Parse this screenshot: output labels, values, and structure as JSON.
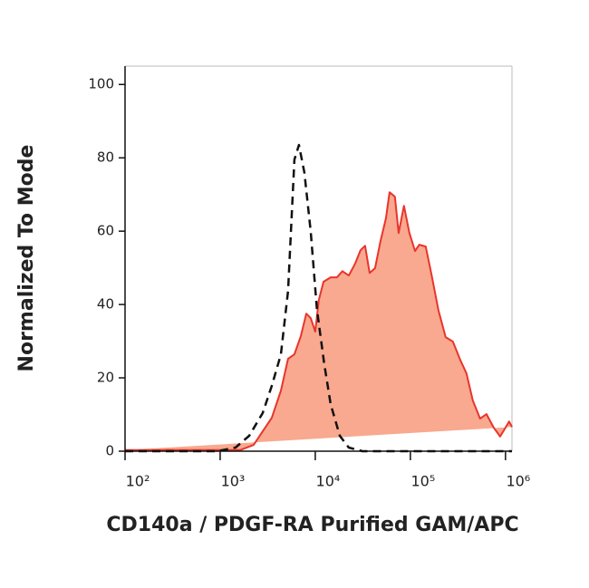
{
  "chart_data": {
    "type": "histogram-overlay",
    "x_label": "CD140a / PDGF-RA Purified GAM/APC",
    "y_label": "Normalized To Mode",
    "x_log": true,
    "xlim": [
      100,
      1170000
    ],
    "ylim": [
      0,
      105
    ],
    "xticks": [
      {
        "value": 100,
        "label": "10²"
      },
      {
        "value": 1000,
        "label": "10³"
      },
      {
        "value": 10000,
        "label": "10⁴"
      },
      {
        "value": 100000,
        "label": "10⁵"
      },
      {
        "value": 1000000,
        "label": "10⁶"
      }
    ],
    "yticks": [
      0,
      20,
      40,
      60,
      80,
      100
    ],
    "series": [
      {
        "color": "#e8352b",
        "fill": "#f9a98f",
        "dashed": false,
        "x": [
          100,
          1620,
          2250,
          2800,
          3490,
          4350,
          5180,
          6040,
          7050,
          8040,
          8960,
          10000,
          10900,
          12200,
          14500,
          16900,
          19300,
          22500,
          26200,
          29900,
          33400,
          37300,
          42500,
          48500,
          55300,
          60400,
          68800,
          75200,
          85700,
          97700,
          112000,
          124000,
          145000,
          166000,
          197000,
          235000,
          280000,
          334000,
          389000,
          454000,
          541000,
          631000,
          752000,
          878000,
          1000000,
          1090000,
          1170000
        ],
        "values": [
          0.3,
          0.3,
          1.7,
          5.4,
          9.1,
          16.5,
          25.2,
          26.4,
          31.4,
          37.5,
          36.3,
          32.6,
          41.2,
          46.2,
          47.4,
          47.4,
          49.1,
          47.9,
          51.1,
          54.8,
          56.0,
          48.6,
          49.9,
          57.3,
          63.5,
          70.6,
          69.4,
          59.5,
          66.9,
          59.5,
          54.6,
          56.3,
          55.8,
          48.4,
          38.5,
          31.1,
          29.9,
          24.9,
          21.2,
          13.8,
          8.9,
          10.1,
          6.4,
          4.0,
          6.4,
          8.1,
          6.6
        ]
      },
      {
        "color": "#111111",
        "dashed": true,
        "x": [
          100,
          935,
          1450,
          2020,
          2800,
          3490,
          4350,
          5180,
          6040,
          6740,
          7690,
          8960,
          10400,
          12400,
          14500,
          18100,
          22500,
          31300,
          1170000
        ],
        "values": [
          0,
          0,
          1.0,
          4.2,
          10.4,
          17.8,
          26.4,
          43.7,
          79.5,
          83.5,
          76.0,
          59.9,
          38.8,
          24.0,
          12.8,
          4.2,
          1.0,
          0,
          0
        ]
      }
    ]
  }
}
